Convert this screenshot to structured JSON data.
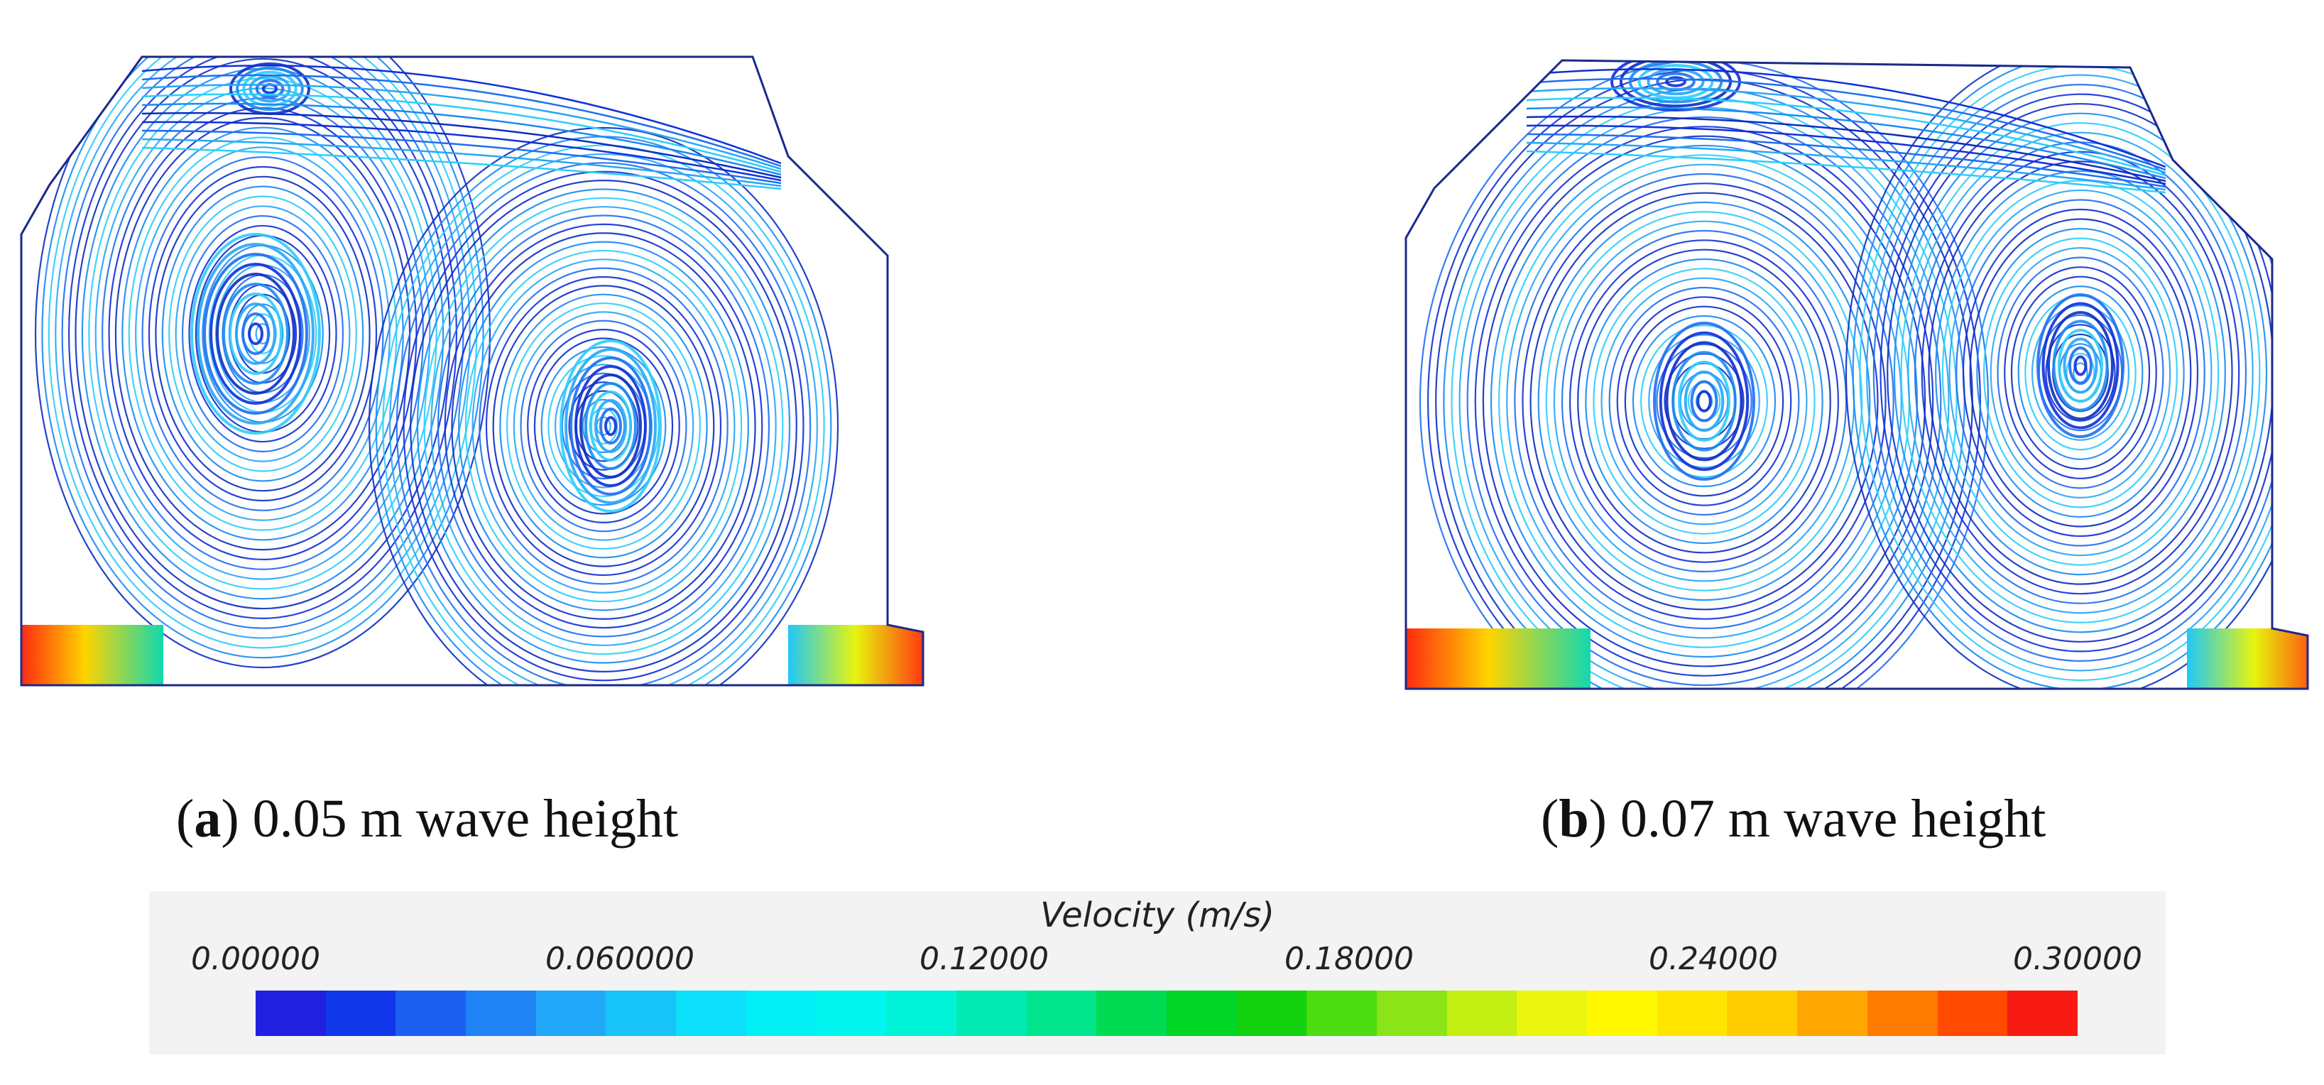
{
  "figure": {
    "panels": [
      {
        "id": "a",
        "label": "a",
        "caption_text": "0.05 m wave height"
      },
      {
        "id": "b",
        "label": "b",
        "caption_text": "0.07 m wave height"
      }
    ],
    "colorbar": {
      "title": "Velocity (m/s)",
      "ticks": [
        "0.00000",
        "0.060000",
        "0.12000",
        "0.18000",
        "0.24000",
        "0.30000"
      ],
      "colors": [
        "#1f20e0",
        "#1038ea",
        "#1c5ff0",
        "#1f82f5",
        "#22a8f8",
        "#16c4fa",
        "#0ce0fa",
        "#00f0f6",
        "#00f6ee",
        "#00f3d6",
        "#00eab2",
        "#00e58c",
        "#00db52",
        "#00d425",
        "#12d20e",
        "#4cdc10",
        "#8ae418",
        "#c4ef12",
        "#eaf60d",
        "#fff800",
        "#ffe400",
        "#ffcc00",
        "#ffa600",
        "#ff7a00",
        "#ff4a00",
        "#f71a10"
      ]
    }
  }
}
